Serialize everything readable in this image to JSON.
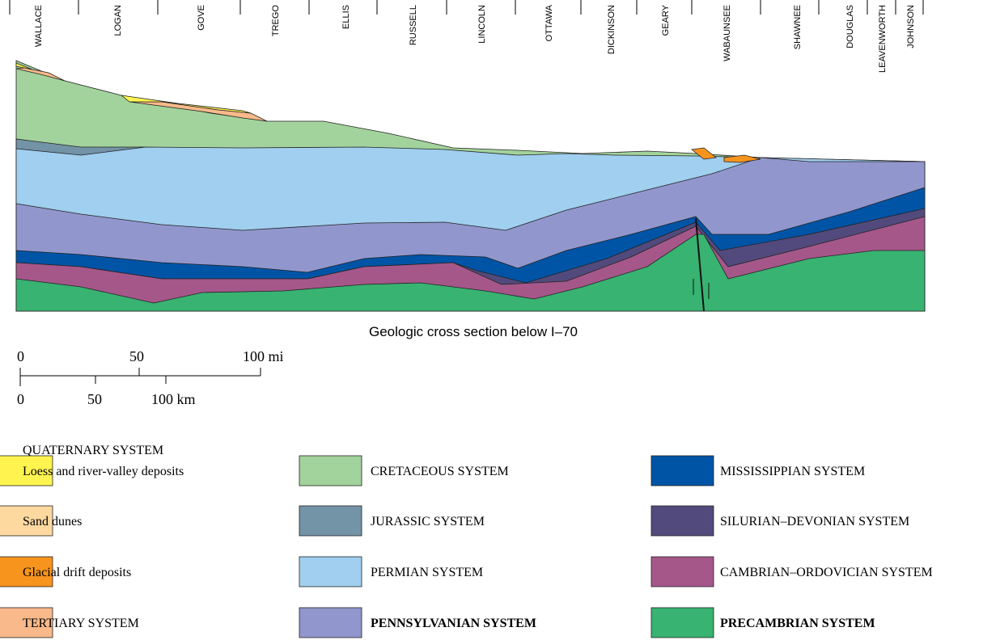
{
  "counties": [
    "WALLACE",
    "LOGAN",
    "GOVE",
    "TREGO",
    "ELLIS",
    "RUSSELL",
    "LINCOLN",
    "OTTAWA",
    "DICKINSON",
    "GEARY",
    "WABAUNSEE",
    "SHAWNEE",
    "DOUGLAS",
    "LEAVENWORTH",
    "JOHNSON"
  ],
  "caption": "Geologic cross section below I–70",
  "scale": {
    "mi": [
      "0",
      "50",
      "100 mi"
    ],
    "km": [
      "0",
      "50",
      "100 km"
    ]
  },
  "legend": {
    "heading": "QUATERNARY SYSTEM",
    "items": [
      {
        "label": "Loess and river-valley deposits",
        "color": "#fff44f"
      },
      {
        "label": "Sand dunes",
        "color": "#fdd9a0"
      },
      {
        "label": "Glacial drift deposits",
        "color": "#f7941d"
      },
      {
        "label": "TERTIARY SYSTEM",
        "color": "#f9b98a"
      },
      {
        "label": "CRETACEOUS SYSTEM",
        "color": "#a3d39c"
      },
      {
        "label": "JURASSIC SYSTEM",
        "color": "#7393a7"
      },
      {
        "label": "PERMIAN SYSTEM",
        "color": "#a0cfef"
      },
      {
        "label": "PENNSYLVANIAN SYSTEM",
        "color": "#9197cd",
        "bold": true
      },
      {
        "label": "MISSISSIPPIAN SYSTEM",
        "color": "#0054a6"
      },
      {
        "label": "SILURIAN–DEVONIAN SYSTEM",
        "color": "#524a7c"
      },
      {
        "label": "CAMBRIAN–ORDOVICIAN SYSTEM",
        "color": "#a5578a"
      },
      {
        "label": "PRECAMBRIAN SYSTEM",
        "color": "#38b371",
        "bold": true
      }
    ]
  }
}
